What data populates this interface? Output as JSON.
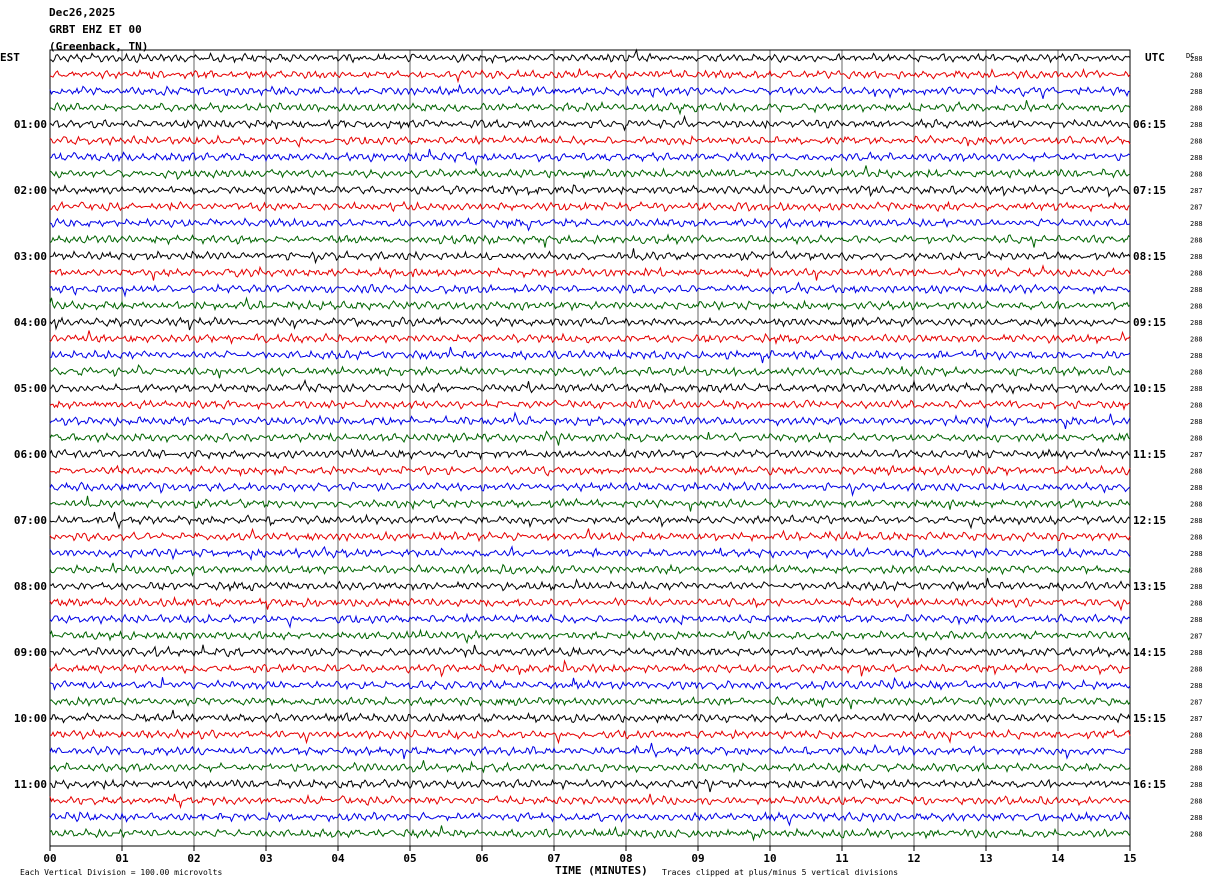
{
  "header": {
    "date": "Dec26,2025",
    "station": "GRBT EHZ ET 00",
    "location": "(Greenback, TN)"
  },
  "chart_data": {
    "type": "line",
    "title": "",
    "left_timezone": "EST",
    "right_timezone": "UTC",
    "dc_label": "DC",
    "xlabel": "TIME (MINUTES)",
    "xlim": [
      0,
      15
    ],
    "x_ticks": [
      "00",
      "01",
      "02",
      "03",
      "04",
      "05",
      "06",
      "07",
      "08",
      "09",
      "10",
      "11",
      "12",
      "13",
      "14",
      "15"
    ],
    "grid": "vertical",
    "trace_colors": [
      "#000000",
      "#e60000",
      "#0000e6",
      "#006400"
    ],
    "left_hour_labels": [
      "01:00",
      "02:00",
      "03:00",
      "04:00",
      "05:00",
      "06:00",
      "07:00",
      "08:00",
      "09:00",
      "10:00",
      "11:00"
    ],
    "right_hour_labels": [
      "06:15",
      "07:15",
      "08:15",
      "09:15",
      "10:15",
      "11:15",
      "12:15",
      "13:15",
      "14:15",
      "15:15",
      "16:15"
    ],
    "dc_offsets": [
      "288",
      "288",
      "288",
      "288",
      "288",
      "288",
      "288",
      "288",
      "287",
      "287",
      "288",
      "288",
      "288",
      "288",
      "288",
      "288",
      "288",
      "288",
      "288",
      "288",
      "288",
      "288",
      "288",
      "288",
      "287",
      "288",
      "288",
      "288",
      "288",
      "288",
      "288",
      "288",
      "288",
      "288",
      "288",
      "287",
      "288",
      "288",
      "288",
      "287",
      "287",
      "288",
      "288",
      "288",
      "288",
      "288",
      "288",
      "288"
    ],
    "footer_left": "Each Vertical Division =  100.00 microvolts",
    "footer_right": "Traces clipped at plus/minus 5 vertical divisions"
  }
}
